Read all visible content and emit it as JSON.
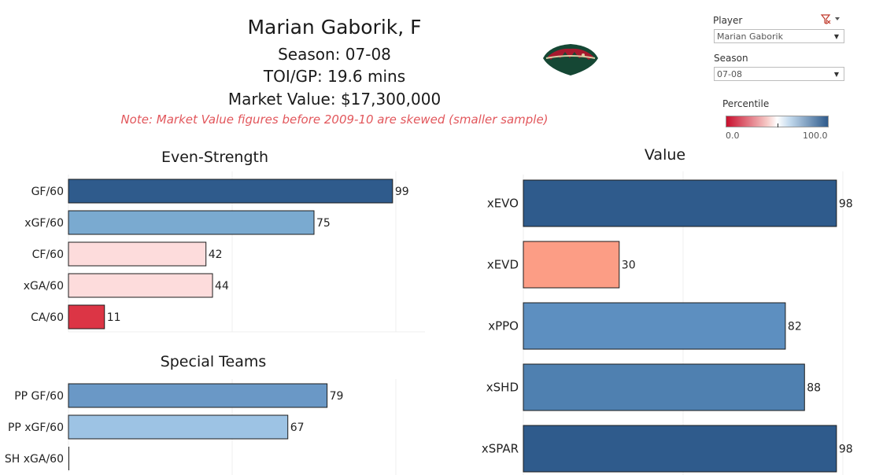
{
  "header": {
    "player_title": "Marian Gaborik, F",
    "season_line": "Season:  07-08",
    "toi_line": "TOI/GP: 19.6 mins",
    "market_line": "Market Value: $17,300,000",
    "note": "Note: Market Value figures before 2009-10 are skewed (smaller sample)"
  },
  "logo": {
    "name": "minnesota-wild-logo",
    "primary": "#154734",
    "accent": "#a6192e",
    "gold": "#ddcba4"
  },
  "filters": {
    "player_label": "Player",
    "player_value": "Marian Gaborik",
    "season_label": "Season",
    "season_value": "07-08"
  },
  "legend": {
    "title": "Percentile",
    "min_label": "0.0",
    "max_label": "100.0",
    "colors": {
      "low": "#c8102e",
      "mid": "#ffffff",
      "high": "#2f5b8c"
    }
  },
  "chart_data": [
    {
      "type": "bar",
      "orientation": "horizontal",
      "title": "Even-Strength",
      "categories": [
        "GF/60",
        "xGF/60",
        "CF/60",
        "xGA/60",
        "CA/60"
      ],
      "values": [
        99,
        75,
        42,
        44,
        11
      ],
      "colors": [
        "#2f5b8c",
        "#7aaad0",
        "#fddcdc",
        "#fddcdc",
        "#dc3545"
      ],
      "xlim": [
        0,
        100
      ]
    },
    {
      "type": "bar",
      "orientation": "horizontal",
      "title": "Special Teams",
      "categories": [
        "PP GF/60",
        "PP xGF/60",
        "SH xGA/60"
      ],
      "values": [
        79,
        67,
        0
      ],
      "colors": [
        "#6a98c6",
        "#9dc3e4",
        "#ffffff"
      ],
      "xlim": [
        0,
        100
      ]
    },
    {
      "type": "bar",
      "orientation": "horizontal",
      "title": "Value",
      "categories": [
        "xEVO",
        "xEVD",
        "xPPO",
        "xSHD",
        "xSPAR"
      ],
      "values": [
        98,
        30,
        82,
        88,
        98
      ],
      "colors": [
        "#2f5b8c",
        "#fc9d85",
        "#5d8fc0",
        "#4f80b0",
        "#2f5b8c"
      ],
      "xlim": [
        0,
        100
      ]
    }
  ]
}
